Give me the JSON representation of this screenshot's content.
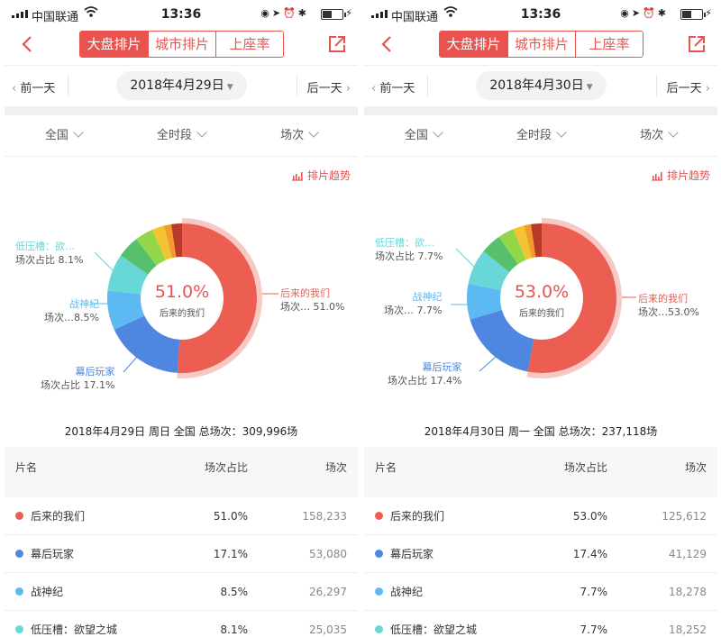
{
  "colors": {
    "accent": "#e85350",
    "series": [
      "#ec5d52",
      "#4f86df",
      "#5db9f2",
      "#67d7d8",
      "#56c06c",
      "#94d64a",
      "#f2c432",
      "#f49b2c",
      "#b83a28"
    ]
  },
  "panels": [
    {
      "status": {
        "carrier": "中国联通",
        "time": "13:36"
      },
      "nav": {
        "tabs": [
          "大盘排片",
          "城市排片",
          "上座率"
        ]
      },
      "date": {
        "prev": "前一天",
        "current": "2018年4月29日",
        "next": "后一天"
      },
      "filters": [
        "全国",
        "全时段",
        "场次"
      ],
      "trend_label": "排片趋势",
      "chart_data": {
        "type": "pie",
        "values": [
          51.0,
          17.1,
          8.5,
          8.1,
          4.8,
          4.0,
          2.6,
          1.6,
          2.3
        ],
        "center_value": "51.0%",
        "center_label": "后来的我们"
      },
      "labels": [
        {
          "name": "后来的我们",
          "share": "场次… 51.0%"
        },
        {
          "name": "幕后玩家",
          "share": "场次占比 17.1%"
        },
        {
          "name": "战神纪",
          "share": "场次…8.5%"
        },
        {
          "name": "低压槽：欲…",
          "share": "场次占比 8.1%"
        }
      ],
      "summary": "2018年4月29日 周日 全国 总场次：309,996场",
      "table": {
        "headers": [
          "片名",
          "场次占比",
          "场次"
        ],
        "rows": [
          {
            "name": "后来的我们",
            "ratio": "51.0%",
            "count": "158,233"
          },
          {
            "name": "幕后玩家",
            "ratio": "17.1%",
            "count": "53,080"
          },
          {
            "name": "战神纪",
            "ratio": "8.5%",
            "count": "26,297"
          },
          {
            "name": "低压槽：欲望之城",
            "ratio": "8.1%",
            "count": "25,035"
          }
        ]
      }
    },
    {
      "status": {
        "carrier": "中国联通",
        "time": "13:36"
      },
      "nav": {
        "tabs": [
          "大盘排片",
          "城市排片",
          "上座率"
        ]
      },
      "date": {
        "prev": "前一天",
        "current": "2018年4月30日",
        "next": "后一天"
      },
      "filters": [
        "全国",
        "全时段",
        "场次"
      ],
      "trend_label": "排片趋势",
      "chart_data": {
        "type": "pie",
        "values": [
          53.0,
          17.4,
          7.7,
          7.7,
          4.5,
          3.5,
          2.4,
          1.5,
          2.3
        ],
        "center_value": "53.0%",
        "center_label": "后来的我们"
      },
      "labels": [
        {
          "name": "后来的我们",
          "share": "场次…53.0%"
        },
        {
          "name": "幕后玩家",
          "share": "场次占比 17.4%"
        },
        {
          "name": "战神纪",
          "share": "场次… 7.7%"
        },
        {
          "name": "低压槽：欲…",
          "share": "场次占比 7.7%"
        }
      ],
      "summary": "2018年4月30日 周一 全国 总场次：237,118场",
      "table": {
        "headers": [
          "片名",
          "场次占比",
          "场次"
        ],
        "rows": [
          {
            "name": "后来的我们",
            "ratio": "53.0%",
            "count": "125,612"
          },
          {
            "name": "幕后玩家",
            "ratio": "17.4%",
            "count": "41,129"
          },
          {
            "name": "战神纪",
            "ratio": "7.7%",
            "count": "18,278"
          },
          {
            "name": "低压槽：欲望之城",
            "ratio": "7.7%",
            "count": "18,252"
          }
        ]
      }
    }
  ]
}
